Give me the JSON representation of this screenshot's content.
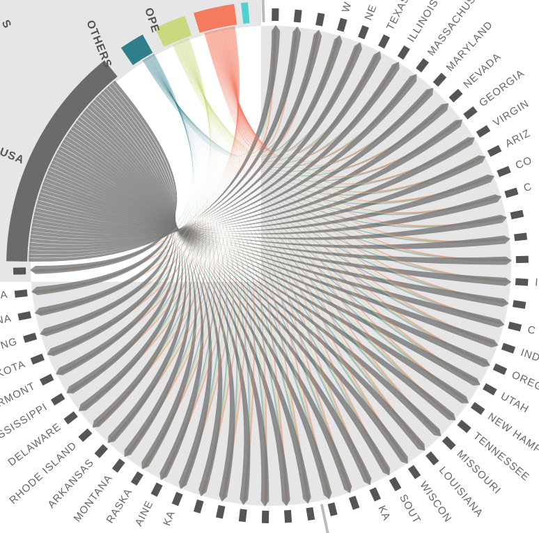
{
  "sources": [
    "USA",
    "OTHERS",
    "OPE",
    "S"
  ],
  "targets": [
    null,
    null,
    null,
    "W",
    "NE",
    "TEXAS",
    "ILLINOIS",
    "MASSACHUSE",
    "MARYLAND",
    "NEVADA",
    "GEORGIA",
    "VIRGIN",
    "ARIZ",
    "CO",
    "C",
    null,
    null,
    null,
    "I",
    null,
    "C",
    "IND",
    "OREG",
    "UTAH",
    "NEW HAMPS",
    "TENNESSEE",
    "MISSOURI",
    "LOUISIANA",
    "WISCON",
    "SOUT",
    "KA",
    null,
    null,
    null,
    null,
    null,
    null,
    null,
    null,
    "KA",
    "AINE",
    "RASKA",
    "MONTANA",
    "ARKANSAS",
    "RHODE ISLAND",
    "DELAWARE",
    "MISSISSIPPI",
    "ERMONT",
    "KOTA",
    "NG",
    "NA",
    "A",
    null
  ]
}
